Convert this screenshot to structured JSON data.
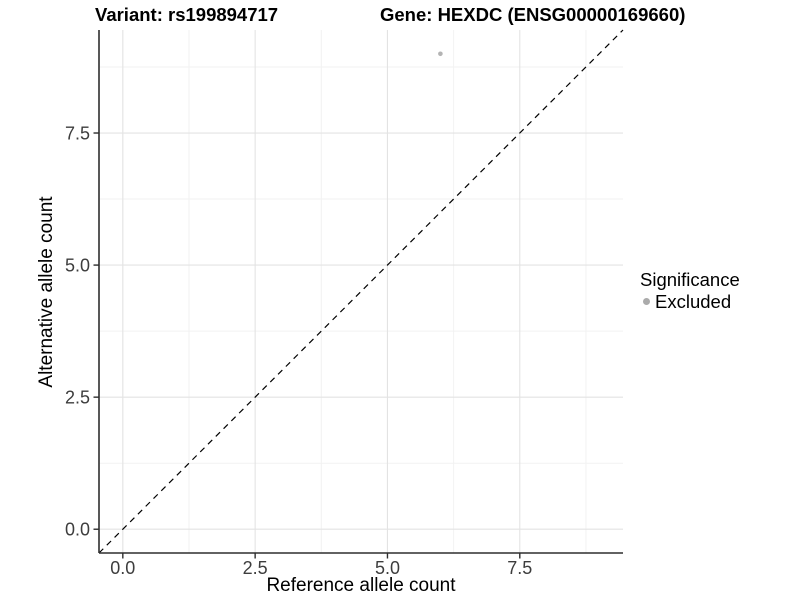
{
  "chart_data": {
    "type": "scatter",
    "title_left": "Variant: rs199894717",
    "title_right": "Gene: HEXDC (ENSG00000169660)",
    "xlabel": "Reference allele count",
    "ylabel": "Alternative allele count",
    "xlim": [
      -0.45,
      9.45
    ],
    "ylim": [
      -0.45,
      9.45
    ],
    "x_major_ticks": [
      0,
      2.5,
      5,
      7.5
    ],
    "y_major_ticks": [
      0,
      2.5,
      5,
      7.5
    ],
    "x_minor_ticks": [
      1.25,
      3.75,
      6.25,
      8.75
    ],
    "y_minor_ticks": [
      1.25,
      3.75,
      6.25,
      8.75
    ],
    "grid": "major-and-minor",
    "points": [
      {
        "x": 6,
        "y": 9,
        "significance": "Excluded"
      }
    ],
    "reference_line": {
      "slope": 1,
      "intercept": 0,
      "linetype": "dashed",
      "color": "#000000"
    },
    "legend_position": "right"
  },
  "legend": {
    "title": "Significance",
    "items": [
      {
        "label": "Excluded",
        "color": "#ababab"
      }
    ]
  },
  "style": {
    "background": "#ffffff",
    "axis_line_color": "#2e2e2e",
    "tick_mark_color": "#2e2e2e",
    "tick_label_color": "#3d3d3d",
    "major_grid_color": "#e3e3e3",
    "minor_grid_color": "#f2f2f2",
    "point_color": "#b4b4b4",
    "title_color": "#000000"
  }
}
